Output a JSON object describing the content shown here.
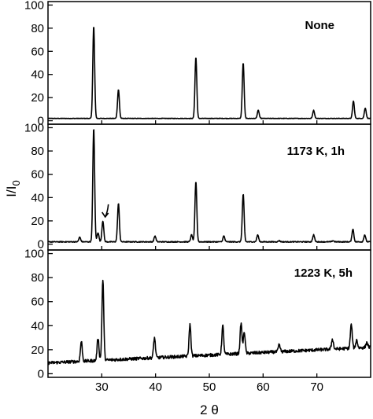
{
  "chart_data": {
    "type": "line",
    "xlabel": "2 θ",
    "ylabel_main": "I/I",
    "ylabel_sub": "0",
    "xlim": [
      20,
      80
    ],
    "x_ticks": [
      30,
      40,
      50,
      60,
      70
    ],
    "grid": false,
    "line_color": "#000000",
    "panels": [
      {
        "label": "None",
        "ylim": [
          -3,
          103
        ],
        "y_ticks": [
          0,
          20,
          40,
          60,
          80,
          100
        ],
        "baseline": 2,
        "noise": 0.2,
        "annotation": null,
        "peaks": [
          {
            "x": 28.5,
            "y": 82
          },
          {
            "x": 33.1,
            "y": 27
          },
          {
            "x": 47.5,
            "y": 55
          },
          {
            "x": 56.3,
            "y": 50
          },
          {
            "x": 59.1,
            "y": 9
          },
          {
            "x": 69.4,
            "y": 9
          },
          {
            "x": 76.8,
            "y": 17
          },
          {
            "x": 79.0,
            "y": 11
          }
        ]
      },
      {
        "label": "1173 K, 1h",
        "ylim": [
          -5,
          103
        ],
        "y_ticks": [
          0,
          20,
          40,
          60,
          80,
          100
        ],
        "baseline": 2,
        "noise": 0.4,
        "annotation": {
          "x": 30.2,
          "y": 20
        },
        "peaks": [
          {
            "x": 25.9,
            "y": 6
          },
          {
            "x": 28.5,
            "y": 100
          },
          {
            "x": 29.3,
            "y": 10
          },
          {
            "x": 30.2,
            "y": 20
          },
          {
            "x": 33.1,
            "y": 35
          },
          {
            "x": 39.9,
            "y": 7
          },
          {
            "x": 46.7,
            "y": 8
          },
          {
            "x": 47.5,
            "y": 54
          },
          {
            "x": 52.7,
            "y": 7
          },
          {
            "x": 56.3,
            "y": 43
          },
          {
            "x": 59.0,
            "y": 8
          },
          {
            "x": 63.0,
            "y": 3
          },
          {
            "x": 69.4,
            "y": 8
          },
          {
            "x": 73.0,
            "y": 3
          },
          {
            "x": 76.7,
            "y": 13
          },
          {
            "x": 78.9,
            "y": 8
          }
        ]
      },
      {
        "label": "1223 K, 5h",
        "ylim": [
          -3,
          103
        ],
        "y_ticks": [
          0,
          20,
          40,
          60,
          80,
          100
        ],
        "baseline_start": 9,
        "baseline_end": 22,
        "noise": 1.3,
        "annotation": null,
        "peaks": [
          {
            "x": 26.2,
            "y": 27
          },
          {
            "x": 29.3,
            "y": 30
          },
          {
            "x": 30.2,
            "y": 78
          },
          {
            "x": 39.8,
            "y": 30
          },
          {
            "x": 46.4,
            "y": 41
          },
          {
            "x": 52.5,
            "y": 40
          },
          {
            "x": 55.9,
            "y": 42
          },
          {
            "x": 56.5,
            "y": 35
          },
          {
            "x": 63.0,
            "y": 24
          },
          {
            "x": 72.9,
            "y": 29
          },
          {
            "x": 76.4,
            "y": 41
          },
          {
            "x": 77.4,
            "y": 28
          },
          {
            "x": 79.3,
            "y": 26
          }
        ]
      }
    ]
  }
}
